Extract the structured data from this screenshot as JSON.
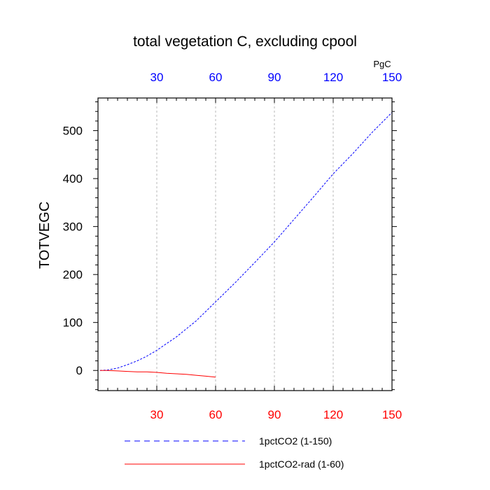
{
  "chart_data": {
    "type": "line",
    "title": "total vegetation C, excluding cpool",
    "ylabel": "TOTVEGC",
    "top_axis_unit": "PgC",
    "xlim": [
      0,
      150
    ],
    "ylim": [
      -42,
      568
    ],
    "grid": "vertical dashed at x ticks",
    "x_ticks_bottom": [
      "30",
      "60",
      "90",
      "120",
      "150"
    ],
    "x_ticks_top": [
      "30",
      "60",
      "90",
      "120",
      "150"
    ],
    "x_tick_values": [
      30,
      60,
      90,
      120,
      150
    ],
    "y_ticks": [
      "0",
      "100",
      "200",
      "300",
      "400",
      "500"
    ],
    "y_tick_values": [
      0,
      100,
      200,
      300,
      400,
      500
    ],
    "colors": {
      "top_axis": "#0000ff",
      "bottom_axis": "#ff0000",
      "series1": "#0000ff",
      "series2": "#ff0000"
    },
    "series": [
      {
        "name": "1pctCO2 (1-150)",
        "style": "dashed",
        "color": "#0000ff",
        "x": [
          1,
          5,
          10,
          15,
          20,
          25,
          30,
          40,
          50,
          60,
          70,
          80,
          90,
          100,
          110,
          120,
          130,
          140,
          150
        ],
        "y": [
          0,
          1,
          5,
          12,
          20,
          30,
          42,
          70,
          103,
          143,
          183,
          225,
          268,
          315,
          362,
          410,
          452,
          497,
          538
        ]
      },
      {
        "name": "1pctCO2-rad (1-60)",
        "style": "solid",
        "color": "#ff0000",
        "x": [
          1,
          5,
          10,
          15,
          20,
          25,
          30,
          35,
          40,
          45,
          50,
          55,
          60
        ],
        "y": [
          0,
          0,
          -1,
          -2,
          -3,
          -3,
          -4,
          -6,
          -7,
          -8,
          -10,
          -12,
          -14
        ]
      }
    ],
    "legend_placement": "bottom"
  }
}
